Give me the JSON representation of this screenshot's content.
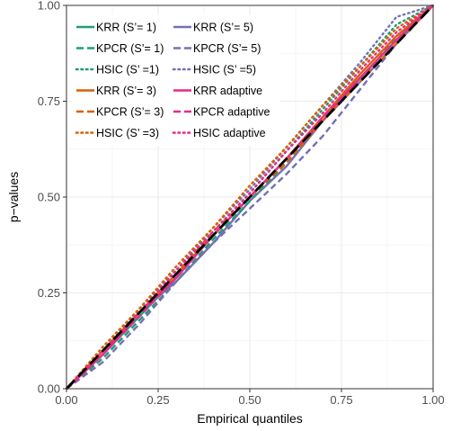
{
  "chart_data": {
    "type": "line",
    "title": "",
    "xlabel": "Empirical quantiles",
    "ylabel": "p−values",
    "xlim": [
      0,
      1
    ],
    "ylim": [
      0,
      1
    ],
    "x_ticks": [
      "0.00",
      "0.25",
      "0.50",
      "0.75",
      "1.00"
    ],
    "y_ticks": [
      "0.00",
      "0.25",
      "0.50",
      "0.75",
      "1.00"
    ],
    "grid": true,
    "legend_position": "top-left inside",
    "series": [
      {
        "name": "KRR (S’= 1)",
        "color": "#1b9e77",
        "dash": "solid",
        "x": [
          0,
          0.1,
          0.2,
          0.3,
          0.4,
          0.5,
          0.6,
          0.7,
          0.8,
          0.9,
          1.0
        ],
        "y": [
          0,
          0.09,
          0.19,
          0.29,
          0.4,
          0.5,
          0.6,
          0.71,
          0.81,
          0.91,
          1.0
        ]
      },
      {
        "name": "KRR (S’= 5)",
        "color": "#7570b3",
        "dash": "solid",
        "x": [
          0,
          0.1,
          0.2,
          0.3,
          0.4,
          0.5,
          0.6,
          0.7,
          0.8,
          0.9,
          1.0
        ],
        "y": [
          0,
          0.1,
          0.2,
          0.28,
          0.38,
          0.49,
          0.58,
          0.7,
          0.8,
          0.9,
          1.0
        ]
      },
      {
        "name": "KPCR (S’= 1)",
        "color": "#1b9e77",
        "dash": "dashed",
        "x": [
          0,
          0.1,
          0.2,
          0.3,
          0.4,
          0.5,
          0.6,
          0.7,
          0.8,
          0.9,
          1.0
        ],
        "y": [
          0,
          0.08,
          0.18,
          0.28,
          0.39,
          0.49,
          0.59,
          0.7,
          0.8,
          0.92,
          1.0
        ]
      },
      {
        "name": "KPCR (S’= 5)",
        "color": "#7570b3",
        "dash": "dashed",
        "x": [
          0,
          0.1,
          0.2,
          0.3,
          0.4,
          0.5,
          0.6,
          0.7,
          0.8,
          0.9,
          1.0
        ],
        "y": [
          0,
          0.07,
          0.17,
          0.28,
          0.38,
          0.47,
          0.56,
          0.66,
          0.78,
          0.9,
          1.0
        ]
      },
      {
        "name": "HSIC (S’ =1)",
        "color": "#1b9e77",
        "dash": "dotted",
        "x": [
          0,
          0.1,
          0.2,
          0.3,
          0.4,
          0.5,
          0.6,
          0.7,
          0.8,
          0.9,
          1.0
        ],
        "y": [
          0,
          0.09,
          0.19,
          0.3,
          0.41,
          0.51,
          0.62,
          0.73,
          0.84,
          0.95,
          1.0
        ]
      },
      {
        "name": "HSIC (S’ =5)",
        "color": "#7570b3",
        "dash": "dotted",
        "x": [
          0,
          0.1,
          0.2,
          0.3,
          0.4,
          0.5,
          0.6,
          0.7,
          0.8,
          0.9,
          1.0
        ],
        "y": [
          0,
          0.1,
          0.21,
          0.31,
          0.42,
          0.52,
          0.63,
          0.74,
          0.85,
          0.97,
          1.0
        ]
      },
      {
        "name": "KRR (S’= 3)",
        "color": "#d95f02",
        "dash": "solid",
        "x": [
          0,
          0.1,
          0.2,
          0.3,
          0.4,
          0.5,
          0.6,
          0.7,
          0.8,
          0.9,
          1.0
        ],
        "y": [
          0,
          0.1,
          0.2,
          0.3,
          0.4,
          0.5,
          0.6,
          0.71,
          0.82,
          0.92,
          1.0
        ]
      },
      {
        "name": "KRR adaptive",
        "color": "#e7298a",
        "dash": "solid",
        "x": [
          0,
          0.1,
          0.2,
          0.3,
          0.4,
          0.5,
          0.6,
          0.7,
          0.8,
          0.9,
          1.0
        ],
        "y": [
          0,
          0.09,
          0.2,
          0.29,
          0.4,
          0.5,
          0.6,
          0.7,
          0.81,
          0.91,
          1.0
        ]
      },
      {
        "name": "KPCR (S’= 3)",
        "color": "#d95f02",
        "dash": "dashed",
        "x": [
          0,
          0.1,
          0.2,
          0.3,
          0.4,
          0.5,
          0.6,
          0.7,
          0.8,
          0.9,
          1.0
        ],
        "y": [
          0,
          0.1,
          0.2,
          0.3,
          0.41,
          0.5,
          0.59,
          0.7,
          0.8,
          0.9,
          1.0
        ]
      },
      {
        "name": "KPCR adaptive",
        "color": "#e7298a",
        "dash": "dashed",
        "x": [
          0,
          0.1,
          0.2,
          0.3,
          0.4,
          0.5,
          0.6,
          0.7,
          0.8,
          0.9,
          1.0
        ],
        "y": [
          0,
          0.09,
          0.19,
          0.29,
          0.4,
          0.5,
          0.6,
          0.71,
          0.81,
          0.91,
          1.0
        ]
      },
      {
        "name": "HSIC (S’ =3)",
        "color": "#d95f02",
        "dash": "dotted",
        "x": [
          0,
          0.1,
          0.2,
          0.3,
          0.4,
          0.5,
          0.6,
          0.7,
          0.8,
          0.9,
          1.0
        ],
        "y": [
          0,
          0.11,
          0.21,
          0.32,
          0.42,
          0.53,
          0.63,
          0.74,
          0.84,
          0.94,
          1.0
        ]
      },
      {
        "name": "HSIC adaptive",
        "color": "#e7298a",
        "dash": "dotted",
        "x": [
          0,
          0.1,
          0.2,
          0.3,
          0.4,
          0.5,
          0.6,
          0.7,
          0.8,
          0.9,
          1.0
        ],
        "y": [
          0,
          0.1,
          0.2,
          0.31,
          0.41,
          0.51,
          0.62,
          0.72,
          0.83,
          0.93,
          1.0
        ]
      }
    ],
    "reference_line": {
      "x": [
        0,
        1
      ],
      "y": [
        0,
        1
      ],
      "color": "#000000",
      "dash": "longdash"
    }
  }
}
